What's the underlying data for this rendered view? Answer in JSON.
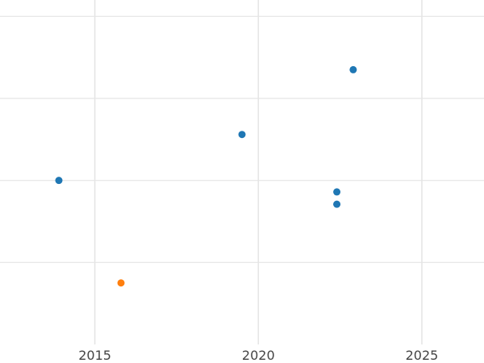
{
  "chart_data": {
    "type": "scatter",
    "title": "",
    "xlabel": "",
    "ylabel": "",
    "xlim": [
      2012.1,
      2026.9
    ],
    "ylim": [
      0,
      4.2
    ],
    "x_ticks": [
      2015,
      2020,
      2025
    ],
    "x_tick_labels": [
      "2015",
      "2020",
      "2025"
    ],
    "y_gridlines": [
      1,
      2,
      3,
      4
    ],
    "grid": true,
    "legend": "none",
    "series": [
      {
        "color": "#1f77b4",
        "points": [
          {
            "x": 2013.9,
            "y": 2.0
          },
          {
            "x": 2019.5,
            "y": 2.56
          },
          {
            "x": 2022.4,
            "y": 1.86
          },
          {
            "x": 2022.4,
            "y": 1.71
          },
          {
            "x": 2022.9,
            "y": 3.35
          }
        ]
      },
      {
        "color": "#ff7f0e",
        "points": [
          {
            "x": 2015.8,
            "y": 0.75
          }
        ]
      }
    ]
  }
}
